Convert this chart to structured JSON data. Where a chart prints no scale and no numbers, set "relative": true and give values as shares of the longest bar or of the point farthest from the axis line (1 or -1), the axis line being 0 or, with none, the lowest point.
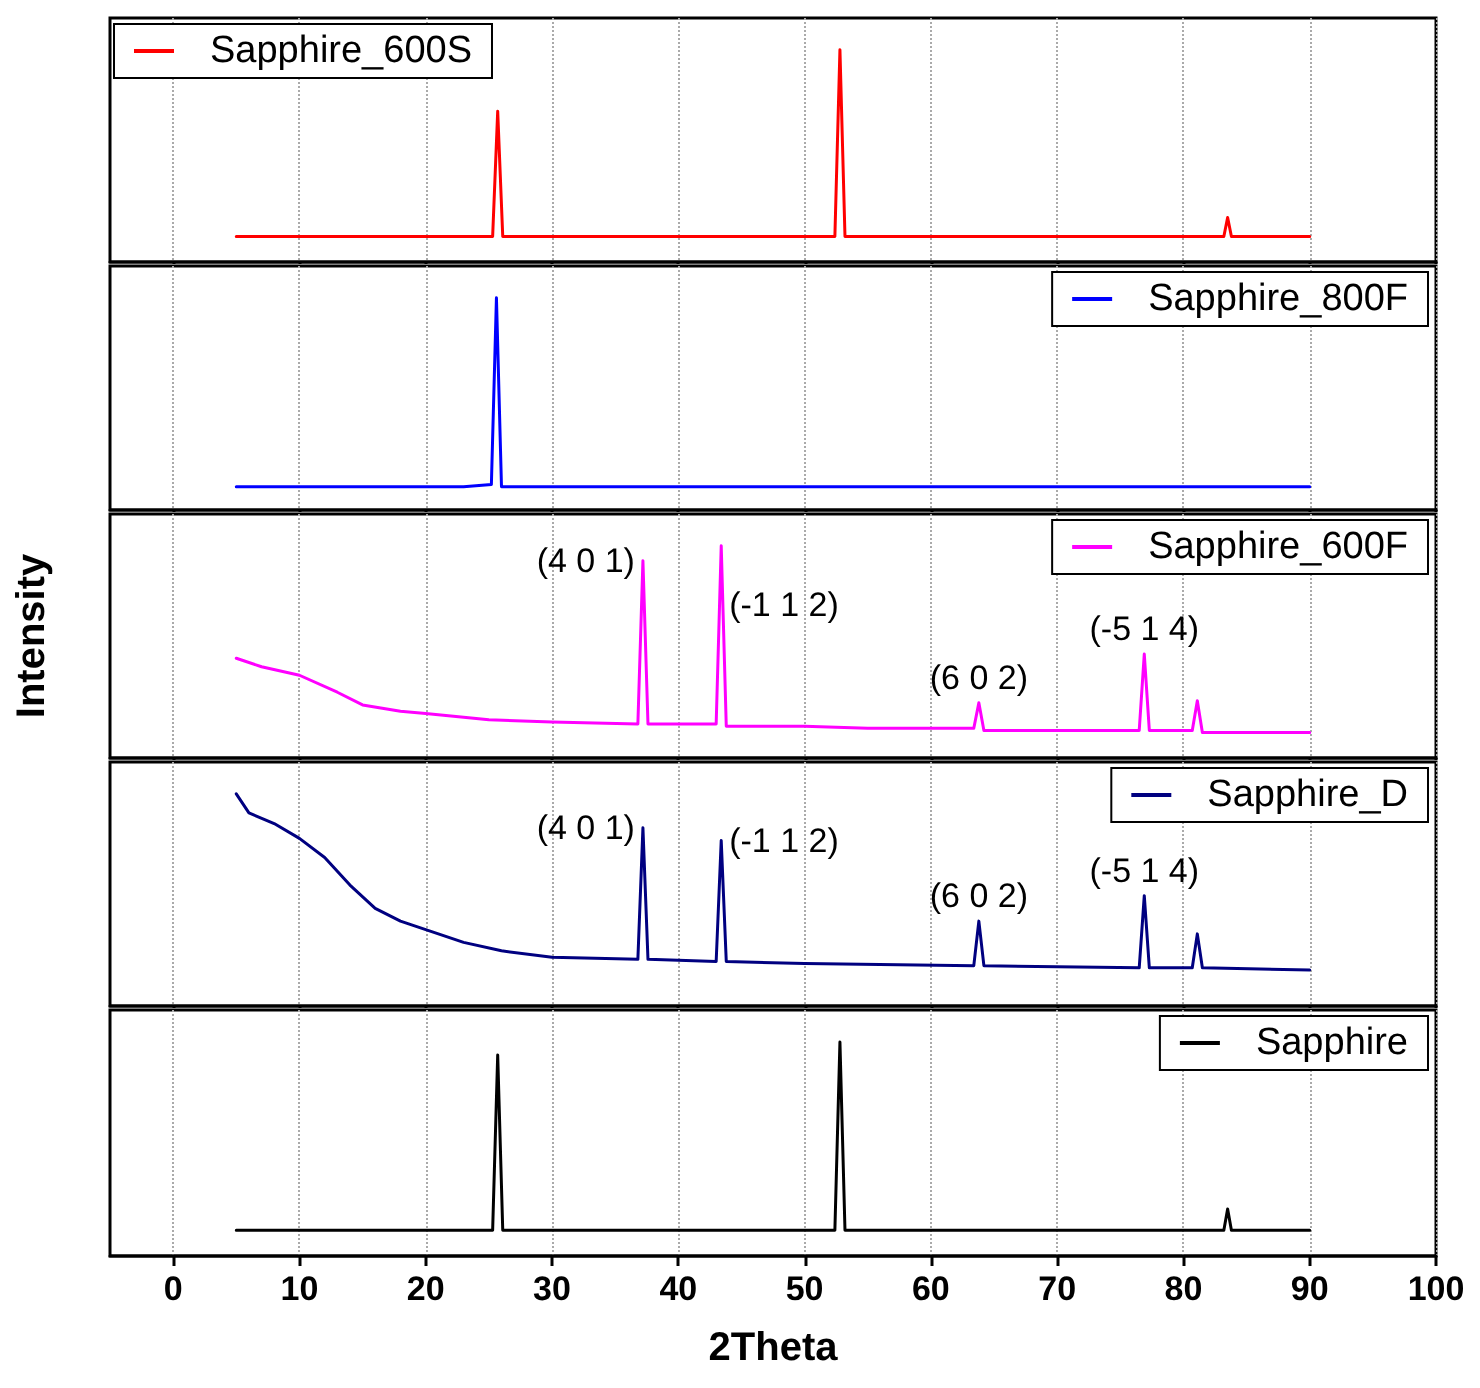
{
  "chart_data": [
    {
      "type": "line",
      "relative": true,
      "xlim": [
        -5,
        100
      ],
      "xticks": [
        0,
        10,
        20,
        30,
        40,
        50,
        60,
        70,
        80,
        90,
        100
      ],
      "tick_labels": false,
      "grid": "x",
      "legend": "top left",
      "x": [
        5,
        25.3,
        25.7,
        26.1,
        52.4,
        52.8,
        53.2,
        83.2,
        83.5,
        83.8,
        90
      ],
      "series": [
        {
          "name": "Sapphire_600S",
          "color": "#ff0000",
          "values": [
            0.12,
            0.12,
            0.71,
            0.12,
            0.12,
            1,
            0.12,
            0.12,
            0.21,
            0.12,
            0.12
          ]
        }
      ]
    },
    {
      "type": "line",
      "relative": true,
      "xlim": [
        -5,
        100
      ],
      "xticks": [
        0,
        10,
        20,
        30,
        40,
        50,
        60,
        70,
        80,
        90,
        100
      ],
      "tick_labels": false,
      "grid": "x",
      "legend": "top right",
      "x": [
        5,
        23,
        25.2,
        25.6,
        26,
        90
      ],
      "series": [
        {
          "name": "Sapphire_800F",
          "color": "#0000ff",
          "values": [
            0.11,
            0.11,
            0.12,
            1,
            0.11,
            0.11
          ]
        }
      ]
    },
    {
      "type": "line",
      "relative": true,
      "xlim": [
        -5,
        100
      ],
      "xticks": [
        0,
        10,
        20,
        30,
        40,
        50,
        60,
        70,
        80,
        90,
        100
      ],
      "tick_labels": false,
      "grid": "x",
      "legend": "top right",
      "ylabel": "Intensity",
      "x": [
        5,
        7,
        10,
        13,
        15,
        18,
        20,
        25,
        30,
        36.8,
        37.2,
        37.6,
        43,
        43.4,
        43.8,
        50,
        55,
        63.4,
        63.8,
        64.2,
        70,
        76.5,
        76.9,
        77.3,
        80.7,
        81.1,
        81.5,
        90
      ],
      "series": [
        {
          "name": "Sapphire_600F",
          "color": "#ff00ff",
          "values": [
            0.47,
            0.43,
            0.39,
            0.31,
            0.25,
            0.22,
            0.21,
            0.18,
            0.17,
            0.16,
            0.93,
            0.16,
            0.16,
            1,
            0.15,
            0.15,
            0.14,
            0.14,
            0.26,
            0.13,
            0.13,
            0.13,
            0.49,
            0.13,
            0.13,
            0.27,
            0.12,
            0.12
          ]
        }
      ],
      "annotations": [
        {
          "text": "(4 0 1)",
          "x": 37.2,
          "y": 0.93
        },
        {
          "text": "(-1 1 2)",
          "x": 43.4,
          "y": 0.72
        },
        {
          "text": "(6 0 2)",
          "x": 63.8,
          "y": 0.26
        },
        {
          "text": "(-5 1 4)",
          "x": 76.9,
          "y": 0.49
        }
      ]
    },
    {
      "type": "line",
      "relative": true,
      "xlim": [
        -5,
        100
      ],
      "xticks": [
        0,
        10,
        20,
        30,
        40,
        50,
        60,
        70,
        80,
        90,
        100
      ],
      "tick_labels": false,
      "grid": "x",
      "legend": "top right",
      "x": [
        5,
        6,
        8,
        10,
        12,
        14,
        16,
        18,
        20,
        23,
        26,
        30,
        36.8,
        37.2,
        37.6,
        43,
        43.4,
        43.8,
        50,
        63.4,
        63.8,
        64.2,
        76.5,
        76.9,
        77.3,
        80.7,
        81.1,
        81.5,
        90
      ],
      "series": [
        {
          "name": "Sapphire_D",
          "color": "#000080",
          "values": [
            1,
            0.91,
            0.86,
            0.79,
            0.7,
            0.57,
            0.46,
            0.4,
            0.36,
            0.3,
            0.26,
            0.23,
            0.22,
            0.84,
            0.22,
            0.21,
            0.78,
            0.21,
            0.2,
            0.19,
            0.4,
            0.19,
            0.18,
            0.52,
            0.18,
            0.18,
            0.34,
            0.18,
            0.17
          ]
        }
      ],
      "annotations": [
        {
          "text": "(4 0 1)",
          "x": 37.2,
          "y": 0.84
        },
        {
          "text": "(-1 1 2)",
          "x": 43.4,
          "y": 0.78
        },
        {
          "text": "(6 0 2)",
          "x": 63.8,
          "y": 0.4
        },
        {
          "text": "(-5 1 4)",
          "x": 76.9,
          "y": 0.52
        }
      ]
    },
    {
      "type": "line",
      "relative": true,
      "xlim": [
        -5,
        100
      ],
      "xticks": [
        0,
        10,
        20,
        30,
        40,
        50,
        60,
        70,
        80,
        90,
        100
      ],
      "tick_labels": "x",
      "grid": "x",
      "legend": "top right",
      "xlabel": "2Theta",
      "x": [
        5,
        25.3,
        25.7,
        26.1,
        52.4,
        52.8,
        53.2,
        83.2,
        83.5,
        83.8,
        90
      ],
      "series": [
        {
          "name": "Sapphire",
          "color": "#000000",
          "values": [
            0.12,
            0.12,
            0.94,
            0.12,
            0.12,
            1,
            0.12,
            0.12,
            0.22,
            0.12,
            0.12
          ]
        }
      ]
    }
  ]
}
